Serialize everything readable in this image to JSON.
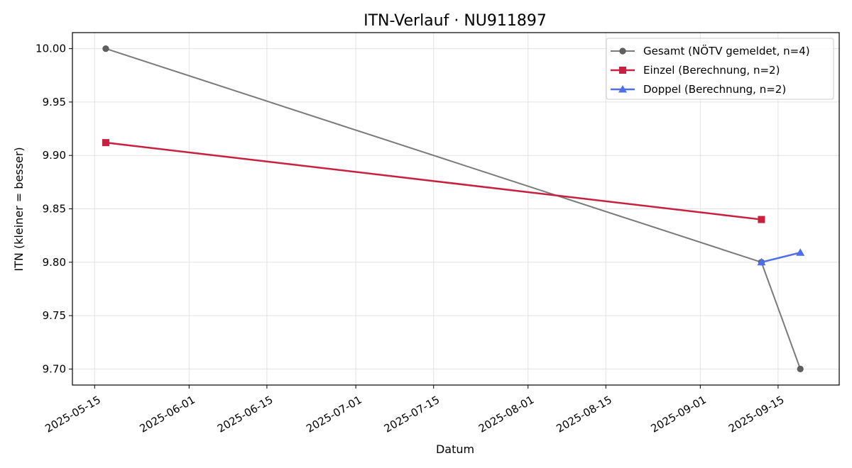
{
  "chart_data": {
    "type": "line",
    "title": "ITN-Verlauf · NU911897",
    "xlabel": "Datum",
    "ylabel": "ITN  (kleiner = besser)",
    "x_ticks": [
      "2025-05-15",
      "2025-06-01",
      "2025-06-15",
      "2025-07-01",
      "2025-07-15",
      "2025-08-01",
      "2025-08-15",
      "2025-09-01",
      "2025-09-15"
    ],
    "y_ticks": [
      "9.70",
      "9.75",
      "9.80",
      "9.85",
      "9.90",
      "9.95",
      "10.00"
    ],
    "xlim": [
      "2025-05-11",
      "2025-09-26"
    ],
    "ylim": [
      9.685,
      10.015
    ],
    "grid": true,
    "legend_position": "top-right",
    "series": [
      {
        "name": "Gesamt (NÖTV gemeldet, n=4)",
        "color": "#7a7a7a",
        "marker": "circle",
        "points": [
          {
            "x": "2025-05-17",
            "y": 10.0
          },
          {
            "x": "2025-09-12",
            "y": 9.8
          },
          {
            "x": "2025-09-19",
            "y": 9.7
          }
        ]
      },
      {
        "name": "Einzel (Berechnung, n=2)",
        "color": "#c8203f",
        "marker": "square",
        "points": [
          {
            "x": "2025-05-17",
            "y": 9.912
          },
          {
            "x": "2025-09-12",
            "y": 9.84
          }
        ]
      },
      {
        "name": "Doppel (Berechnung, n=2)",
        "color": "#4f6fea",
        "marker": "triangle",
        "points": [
          {
            "x": "2025-09-12",
            "y": 9.8
          },
          {
            "x": "2025-09-19",
            "y": 9.809
          }
        ]
      }
    ]
  }
}
